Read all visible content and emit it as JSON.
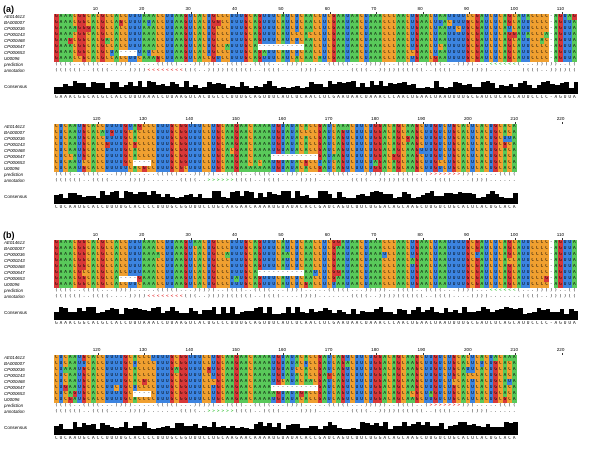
{
  "panels": [
    {
      "label": "(a)"
    },
    {
      "label": "(b)"
    }
  ],
  "sequence_names": [
    "AE014613",
    "BA000007",
    "CP000036",
    "CP000243",
    "CP000468",
    "CP000647",
    "CP000653",
    "U00096"
  ],
  "track_labels": {
    "prediction": "prediction",
    "annotation": "annotation",
    "consensus": "Consensus"
  },
  "ruler_block1": [
    "10",
    "20",
    "30",
    "40",
    "50",
    "60",
    "70",
    "80",
    "90",
    "100",
    "110"
  ],
  "ruler_block2": [
    "120",
    "130",
    "140",
    "150",
    "160",
    "170",
    "180",
    "190",
    "200",
    "210",
    "220"
  ],
  "consensus_block1": "GAAACGGCACGCCACCUUUAAACCUUAAGUCACUGCCCUUUGCAGUUUCAUCUCAACCUCGAAUAACUAAACCCAACUGAACUAAUUUUGCGAUCUCAGCAUUCCCC-AGUUA",
  "consensus_block2": "CUCAAUGCACCUUUUGCACCCCUUUGCGGUUUCCUGCAAGAACAAAAUGUAUACACCGAUCAGUCUUCUGGACAGCAAGCUUGUCUGCACUCACUGCACA",
  "colors": {
    "A": "#59c95a",
    "C": "#f0a030",
    "G": "#d83838",
    "U": "#3c84e0",
    "gap": "#ffffff",
    "green_arrow": "#22bb22",
    "red_arrow": "#dd1111"
  }
}
